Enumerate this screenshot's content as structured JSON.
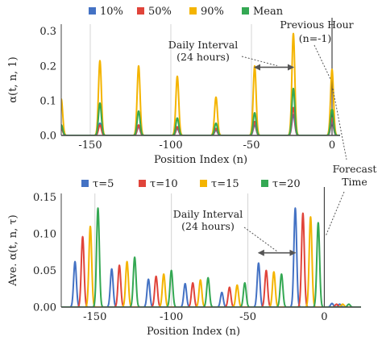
{
  "colors": {
    "blue": "#4472c4",
    "red": "#e0443a",
    "yellow": "#f4b400",
    "green": "#34a853",
    "grid": "#d4d4d4",
    "axis": "#444444",
    "annotation": "#555555"
  },
  "chart_data": [
    {
      "type": "line",
      "panel": "top",
      "xlabel": "Position Index (n)",
      "ylabel": "α(t, n, 1)",
      "xlim": [
        -168,
        5
      ],
      "ylim": [
        0,
        0.32
      ],
      "xticks": [
        -150,
        -100,
        -50,
        0
      ],
      "xtick_labels": [
        "-150",
        "-100",
        "-50",
        "0"
      ],
      "yticks": [
        0,
        0.1,
        0.2,
        0.3
      ],
      "ytick_labels": [
        "0.0",
        "0.1",
        "0.2",
        "0.3"
      ],
      "grid": "vertical",
      "legend": {
        "position": "top"
      },
      "peak_width": 0.9,
      "series": [
        {
          "name": "10%",
          "color": "#4472c4",
          "peaks": [
            [
              -168,
              0.03
            ],
            [
              -144,
              0.035
            ],
            [
              -120,
              0.025
            ],
            [
              -96,
              0.02
            ],
            [
              -72,
              0.015
            ],
            [
              -48,
              0.03
            ],
            [
              -24,
              0.06
            ],
            [
              0,
              0.04
            ]
          ]
        },
        {
          "name": "50%",
          "color": "#e0443a",
          "peaks": [
            [
              -168,
              0.02
            ],
            [
              -144,
              0.03
            ],
            [
              -120,
              0.03
            ],
            [
              -96,
              0.025
            ],
            [
              -72,
              0.02
            ],
            [
              -48,
              0.04
            ],
            [
              -24,
              0.08
            ],
            [
              0,
              0.05
            ]
          ]
        },
        {
          "name": "90%",
          "color": "#f4b400",
          "peaks": [
            [
              -168,
              0.105
            ],
            [
              -144,
              0.215
            ],
            [
              -120,
              0.2
            ],
            [
              -96,
              0.17
            ],
            [
              -72,
              0.11
            ],
            [
              -48,
              0.2
            ],
            [
              -24,
              0.293
            ],
            [
              0,
              0.19
            ]
          ]
        },
        {
          "name": "Mean",
          "color": "#34a853",
          "peaks": [
            [
              -168,
              0.03
            ],
            [
              -144,
              0.093
            ],
            [
              -120,
              0.07
            ],
            [
              -96,
              0.05
            ],
            [
              -72,
              0.035
            ],
            [
              -48,
              0.065
            ],
            [
              -24,
              0.135
            ],
            [
              0,
              0.075
            ]
          ]
        }
      ],
      "annotations": {
        "daily_interval": {
          "label_lines": [
            "Daily Interval",
            "(24 hours)"
          ],
          "from_x": -48,
          "to_x": -24,
          "y": 0.196
        },
        "previous_hour": {
          "label_lines": [
            "Previous Hour",
            "(n=-1)"
          ],
          "x": 0
        }
      }
    },
    {
      "type": "line",
      "panel": "bottom",
      "xlabel": "Position Index (n)",
      "ylabel": "Ave. α(t, n, τ)",
      "xlim": [
        -172,
        24
      ],
      "ylim": [
        0,
        0.155
      ],
      "xticks": [
        -150,
        -100,
        -50,
        0
      ],
      "xtick_labels": [
        "-150",
        "-100",
        "-50",
        "0"
      ],
      "yticks": [
        0,
        0.05,
        0.1,
        0.15
      ],
      "ytick_labels": [
        "0.00",
        "0.05",
        "0.10",
        "0.15"
      ],
      "grid": "vertical",
      "legend": {
        "position": "top"
      },
      "peak_width": 0.9,
      "series": [
        {
          "name": "τ=5",
          "color": "#4472c4",
          "peaks": [
            [
              -163,
              0.062
            ],
            [
              -139,
              0.052
            ],
            [
              -115,
              0.038
            ],
            [
              -91,
              0.032
            ],
            [
              -67,
              0.02
            ],
            [
              -43,
              0.06
            ],
            [
              -19,
              0.135
            ],
            [
              5,
              0.005
            ],
            [
              10,
              0.004
            ]
          ]
        },
        {
          "name": "τ=10",
          "color": "#e0443a",
          "peaks": [
            [
              -158,
              0.096
            ],
            [
              -134,
              0.057
            ],
            [
              -110,
              0.042
            ],
            [
              -86,
              0.033
            ],
            [
              -62,
              0.027
            ],
            [
              -38,
              0.05
            ],
            [
              -14,
              0.128
            ],
            [
              8,
              0.004
            ]
          ]
        },
        {
          "name": "τ=15",
          "color": "#f4b400",
          "peaks": [
            [
              -153,
              0.11
            ],
            [
              -129,
              0.062
            ],
            [
              -105,
              0.045
            ],
            [
              -81,
              0.037
            ],
            [
              -57,
              0.03
            ],
            [
              -33,
              0.048
            ],
            [
              -9,
              0.123
            ],
            [
              12,
              0.004
            ]
          ]
        },
        {
          "name": "τ=20",
          "color": "#34a853",
          "peaks": [
            [
              -148,
              0.135
            ],
            [
              -124,
              0.068
            ],
            [
              -100,
              0.05
            ],
            [
              -76,
              0.04
            ],
            [
              -52,
              0.033
            ],
            [
              -28,
              0.045
            ],
            [
              -4,
              0.115
            ],
            [
              16,
              0.004
            ]
          ]
        }
      ],
      "annotations": {
        "daily_interval": {
          "label_lines": [
            "Daily Interval",
            "(24 hours)"
          ],
          "from_x": -43,
          "to_x": -19,
          "y": 0.074
        },
        "forecast_time": {
          "label_lines": [
            "Forecast",
            "Time"
          ],
          "x": 0
        }
      }
    }
  ]
}
